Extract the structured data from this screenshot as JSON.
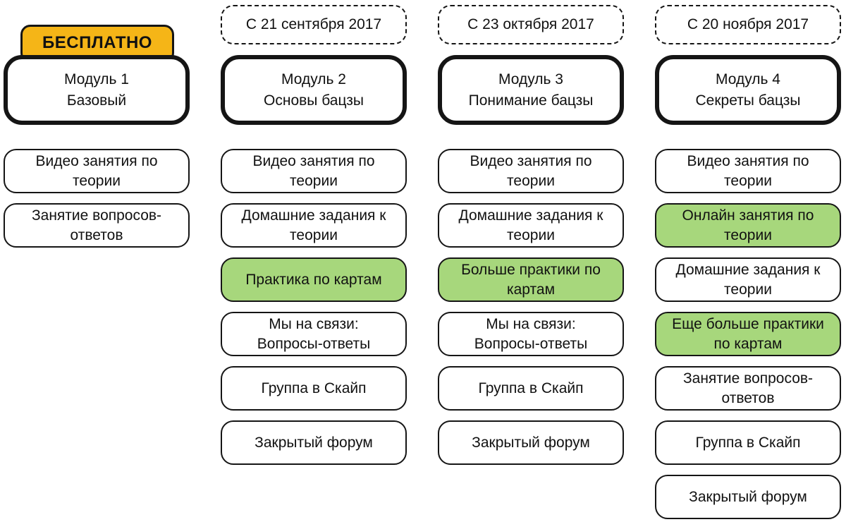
{
  "colors": {
    "background": "#ffffff",
    "box_border": "#151515",
    "badge_fill": "#F5B517",
    "highlight_fill": "#A7D77C",
    "text": "#111111"
  },
  "columns": [
    {
      "badge": {
        "type": "free",
        "label": "БЕСПЛАТНО"
      },
      "module": {
        "line1": "Модуль 1",
        "line2": "Базовый"
      },
      "items": [
        {
          "label": "Видео занятия по\nтеории",
          "highlight": false
        },
        {
          "label": "Занятие вопросов-\nответов",
          "highlight": false
        }
      ]
    },
    {
      "badge": {
        "type": "date",
        "label": "С 21 сентября 2017"
      },
      "module": {
        "line1": "Модуль 2",
        "line2": "Основы бацзы"
      },
      "items": [
        {
          "label": "Видео занятия по\nтеории",
          "highlight": false
        },
        {
          "label": "Домашние задания к\nтеории",
          "highlight": false
        },
        {
          "label": "Практика по картам",
          "highlight": true
        },
        {
          "label": "Мы на связи:\nВопросы-ответы",
          "highlight": false
        },
        {
          "label": "Группа в Скайп",
          "highlight": false
        },
        {
          "label": "Закрытый форум",
          "highlight": false
        }
      ]
    },
    {
      "badge": {
        "type": "date",
        "label": "С 23 октября 2017"
      },
      "module": {
        "line1": "Модуль 3",
        "line2": "Понимание бацзы"
      },
      "items": [
        {
          "label": "Видео занятия по\nтеории",
          "highlight": false
        },
        {
          "label": "Домашние задания к\nтеории",
          "highlight": false
        },
        {
          "label": "Больше практики по\nкартам",
          "highlight": true
        },
        {
          "label": "Мы на связи:\nВопросы-ответы",
          "highlight": false
        },
        {
          "label": "Группа в Скайп",
          "highlight": false
        },
        {
          "label": "Закрытый форум",
          "highlight": false
        }
      ]
    },
    {
      "badge": {
        "type": "date",
        "label": "С 20 ноября 2017"
      },
      "module": {
        "line1": "Модуль 4",
        "line2": "Секреты бацзы"
      },
      "items": [
        {
          "label": "Видео занятия по\nтеории",
          "highlight": false
        },
        {
          "label": "Онлайн занятия по\nтеории",
          "highlight": true
        },
        {
          "label": "Домашние задания к\nтеории",
          "highlight": false
        },
        {
          "label": "Еще больше практики\nпо картам",
          "highlight": true
        },
        {
          "label": "Занятие вопросов-\nответов",
          "highlight": false
        },
        {
          "label": "Группа в Скайп",
          "highlight": false
        },
        {
          "label": "Закрытый форум",
          "highlight": false
        }
      ]
    }
  ]
}
